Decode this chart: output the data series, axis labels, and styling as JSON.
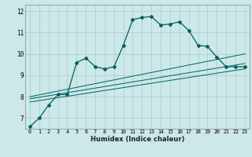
{
  "title": "",
  "xlabel": "Humidex (Indice chaleur)",
  "ylabel": "",
  "bg_color": "#cce8e8",
  "grid_color": "#aacccc",
  "line_color": "#006060",
  "xlim": [
    -0.5,
    23.5
  ],
  "ylim": [
    6.5,
    12.3
  ],
  "xticks": [
    0,
    1,
    2,
    3,
    4,
    5,
    6,
    7,
    8,
    9,
    10,
    11,
    12,
    13,
    14,
    15,
    16,
    17,
    18,
    19,
    20,
    21,
    22,
    23
  ],
  "yticks": [
    7,
    8,
    9,
    10,
    11,
    12
  ],
  "main_x": [
    0,
    1,
    2,
    3,
    4,
    5,
    6,
    7,
    8,
    9,
    10,
    11,
    12,
    13,
    14,
    15,
    16,
    17,
    18,
    19,
    20,
    21,
    22,
    23
  ],
  "main_y": [
    6.6,
    7.0,
    7.6,
    8.1,
    8.1,
    9.6,
    9.8,
    9.4,
    9.3,
    9.4,
    10.4,
    11.6,
    11.7,
    11.75,
    11.35,
    11.4,
    11.5,
    11.1,
    10.4,
    10.35,
    9.85,
    9.4,
    9.4,
    9.4
  ],
  "line2_x": [
    0,
    23
  ],
  "line2_y": [
    8.0,
    10.0
  ],
  "line3_x": [
    0,
    23
  ],
  "line3_y": [
    7.9,
    9.55
  ],
  "line4_x": [
    0,
    23
  ],
  "line4_y": [
    7.75,
    9.3
  ]
}
